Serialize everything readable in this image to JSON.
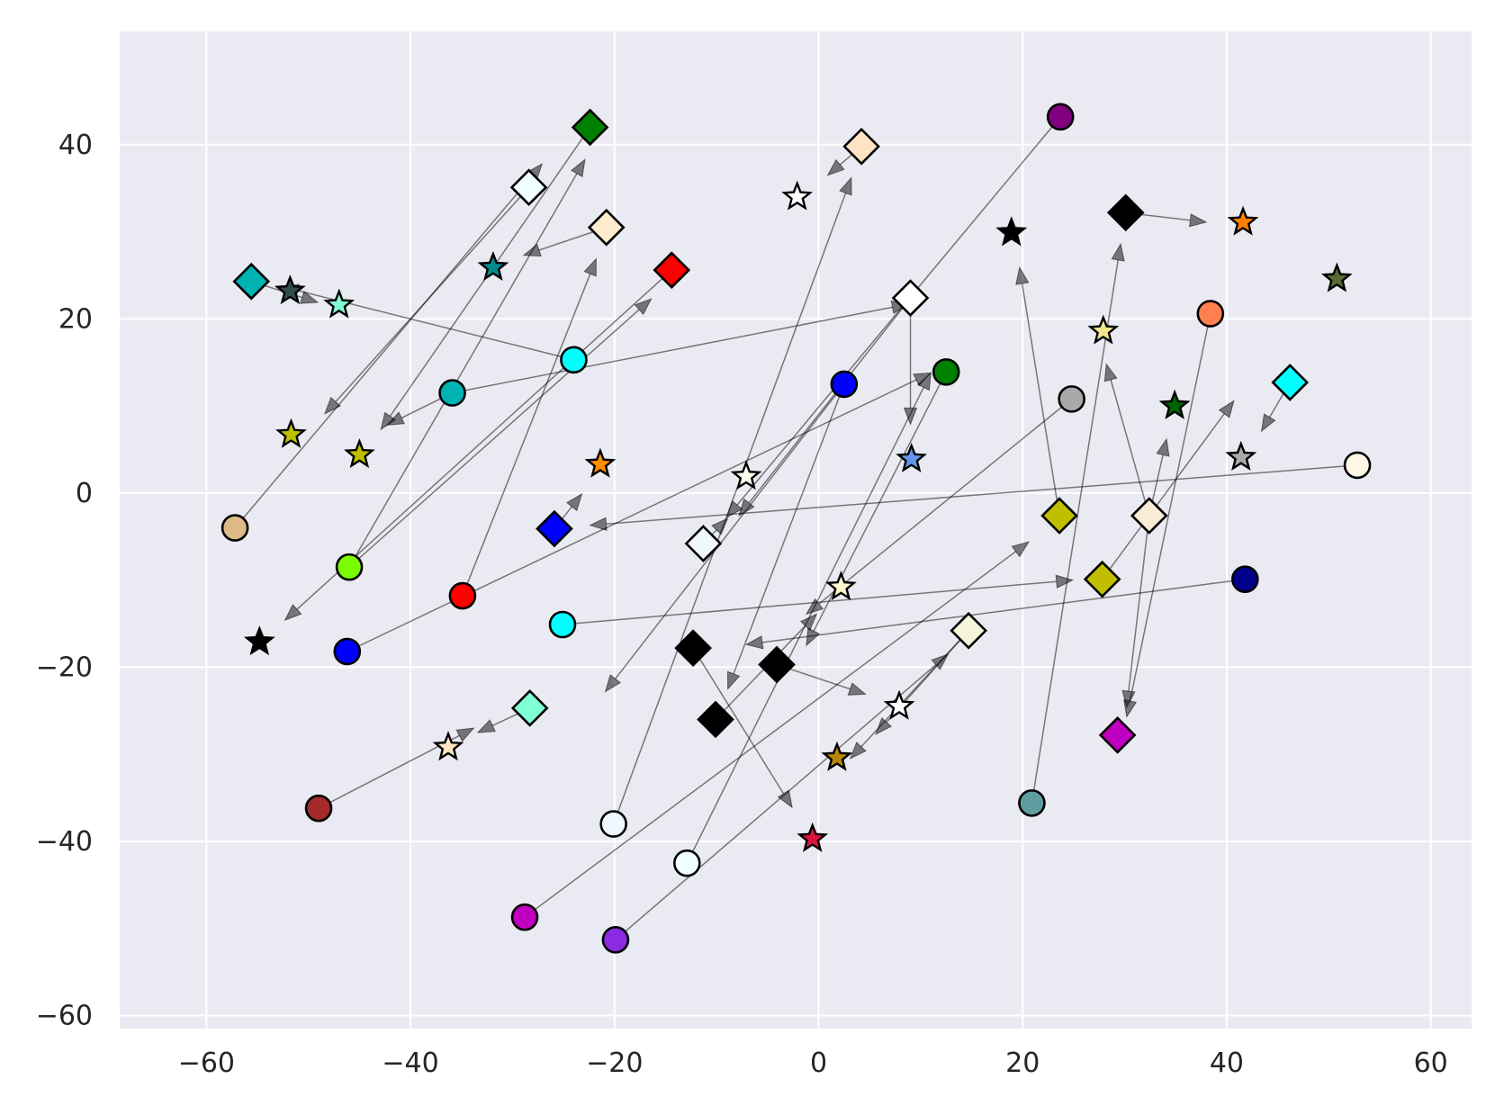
{
  "chart_data": {
    "type": "scatter",
    "title": "",
    "xlabel": "",
    "ylabel": "",
    "xlim": [
      -68.5,
      64
    ],
    "ylim": [
      -61.5,
      53
    ],
    "grid": true,
    "x_ticks": [
      -60,
      -40,
      -20,
      0,
      20,
      40,
      60
    ],
    "y_ticks": [
      -60,
      -40,
      -20,
      0,
      20,
      40
    ],
    "x_tick_labels": [
      "−60",
      "−40",
      "−20",
      "0",
      "20",
      "40",
      "60"
    ],
    "y_tick_labels": [
      "−60",
      "−40",
      "−20",
      "0",
      "20",
      "40"
    ],
    "arrows": [
      {
        "from": [
          -57.2,
          -4.0
        ],
        "to": [
          -27.1,
          37.8
        ]
      },
      {
        "from": [
          -46.0,
          -8.5
        ],
        "to": [
          -22.9,
          38.3
        ]
      },
      {
        "from": [
          -46.0,
          -8.5
        ],
        "to": [
          -16.4,
          22.3
        ]
      },
      {
        "from": [
          -46.2,
          -18.2
        ],
        "to": [
          11.0,
          13.8
        ]
      },
      {
        "from": [
          -34.9,
          -11.8
        ],
        "to": [
          -21.8,
          26.9
        ]
      },
      {
        "from": [
          -49.0,
          -36.2
        ],
        "to": [
          -33.8,
          -27.0
        ]
      },
      {
        "from": [
          -35.9,
          11.5
        ],
        "to": [
          -42.3,
          7.8
        ]
      },
      {
        "from": [
          -35.9,
          11.5
        ],
        "to": [
          8.8,
          21.7
        ]
      },
      {
        "from": [
          -24.0,
          15.3
        ],
        "to": [
          -52.6,
          23.7
        ]
      },
      {
        "from": [
          -25.1,
          -15.1
        ],
        "to": [
          24.9,
          -10.0
        ]
      },
      {
        "from": [
          -20.1,
          -38.0
        ],
        "to": [
          3.2,
          36.2
        ]
      },
      {
        "from": [
          -12.9,
          -42.5
        ],
        "to": [
          11.0,
          13.8
        ]
      },
      {
        "from": [
          -28.8,
          -48.7
        ],
        "to": [
          20.6,
          -5.6
        ]
      },
      {
        "from": [
          -19.9,
          -51.3
        ],
        "to": [
          12.7,
          -18.5
        ]
      },
      {
        "from": [
          2.5,
          12.5
        ],
        "to": [
          -20.9,
          -22.8
        ]
      },
      {
        "from": [
          2.5,
          12.5
        ],
        "to": [
          -8.9,
          -22.5
        ]
      },
      {
        "from": [
          12.5,
          13.9
        ],
        "to": [
          -1.2,
          -17.5
        ]
      },
      {
        "from": [
          23.7,
          43.2
        ],
        "to": [
          -9.0,
          -2.8
        ]
      },
      {
        "from": [
          24.8,
          10.8
        ],
        "to": [
          -1.2,
          -13.9
        ]
      },
      {
        "from": [
          20.9,
          -35.6
        ],
        "to": [
          29.6,
          28.6
        ]
      },
      {
        "from": [
          38.4,
          20.6
        ],
        "to": [
          30.2,
          -25.7
        ]
      },
      {
        "from": [
          41.8,
          -9.9
        ],
        "to": [
          -7.1,
          -17.4
        ]
      },
      {
        "from": [
          52.8,
          3.2
        ],
        "to": [
          -22.4,
          -3.7
        ]
      },
      {
        "from": [
          -55.6,
          24.3
        ],
        "to": [
          -49.1,
          21.9
        ]
      },
      {
        "from": [
          -28.4,
          35.1
        ],
        "to": [
          -48.4,
          9.1
        ]
      },
      {
        "from": [
          -22.4,
          42.0
        ],
        "to": [
          -42.9,
          7.3
        ]
      },
      {
        "from": [
          -20.8,
          30.5
        ],
        "to": [
          -28.9,
          27.3
        ]
      },
      {
        "from": [
          -14.4,
          25.6
        ],
        "to": [
          -52.3,
          -14.6
        ]
      },
      {
        "from": [
          4.2,
          39.8
        ],
        "to": [
          0.9,
          36.5
        ]
      },
      {
        "from": [
          9.0,
          22.4
        ],
        "to": [
          9.0,
          7.9
        ]
      },
      {
        "from": [
          9.0,
          22.4
        ],
        "to": [
          -7.8,
          -2.6
        ]
      },
      {
        "from": [
          -25.9,
          -4.1
        ],
        "to": [
          -23.2,
          -0.1
        ]
      },
      {
        "from": [
          -11.3,
          -5.8
        ],
        "to": [
          -8.9,
          -2.9
        ]
      },
      {
        "from": [
          -12.3,
          -17.8
        ],
        "to": [
          -2.6,
          -36.1
        ]
      },
      {
        "from": [
          -10.1,
          -26.0
        ],
        "to": [
          -0.2,
          -13.9
        ]
      },
      {
        "from": [
          -4.1,
          -19.7
        ],
        "to": [
          4.6,
          -23.1
        ]
      },
      {
        "from": [
          -28.3,
          -24.7
        ],
        "to": [
          -33.4,
          -27.5
        ]
      },
      {
        "from": [
          14.7,
          -15.8
        ],
        "to": [
          3.1,
          -30.5
        ]
      },
      {
        "from": [
          14.7,
          -15.8
        ],
        "to": [
          5.6,
          -27.7
        ]
      },
      {
        "from": [
          23.6,
          -2.6
        ],
        "to": [
          19.7,
          25.9
        ]
      },
      {
        "from": [
          27.8,
          -9.9
        ],
        "to": [
          40.7,
          10.6
        ]
      },
      {
        "from": [
          30.1,
          32.2
        ],
        "to": [
          38.0,
          31.1
        ]
      },
      {
        "from": [
          32.4,
          -2.6
        ],
        "to": [
          28.2,
          14.8
        ]
      },
      {
        "from": [
          32.4,
          -2.6
        ],
        "to": [
          34.1,
          6.2
        ]
      },
      {
        "from": [
          32.4,
          -2.6
        ],
        "to": [
          30.2,
          -24.6
        ]
      },
      {
        "from": [
          46.2,
          12.7
        ],
        "to": [
          43.4,
          7.1
        ]
      }
    ],
    "points": [
      {
        "marker": "circle",
        "x": -57.2,
        "y": -4.0,
        "color": "#deb887"
      },
      {
        "marker": "circle",
        "x": -46.0,
        "y": -8.5,
        "color": "#7cfc00"
      },
      {
        "marker": "circle",
        "x": -46.2,
        "y": -18.2,
        "color": "#0000ff"
      },
      {
        "marker": "circle",
        "x": -34.9,
        "y": -11.8,
        "color": "#ff0000"
      },
      {
        "marker": "circle",
        "x": -49.0,
        "y": -36.2,
        "color": "#a52a2a"
      },
      {
        "marker": "circle",
        "x": -35.9,
        "y": 11.5,
        "color": "#00b3b3"
      },
      {
        "marker": "circle",
        "x": -24.0,
        "y": 15.3,
        "color": "#00ffff"
      },
      {
        "marker": "circle",
        "x": -25.1,
        "y": -15.1,
        "color": "#00ffff"
      },
      {
        "marker": "circle",
        "x": -20.1,
        "y": -38.0,
        "color": "#f0f8ff"
      },
      {
        "marker": "circle",
        "x": -12.9,
        "y": -42.5,
        "color": "#f0ffff"
      },
      {
        "marker": "circle",
        "x": -28.8,
        "y": -48.7,
        "color": "#c000c0"
      },
      {
        "marker": "circle",
        "x": -19.9,
        "y": -51.3,
        "color": "#8a2be2"
      },
      {
        "marker": "circle",
        "x": 2.5,
        "y": 12.5,
        "color": "#0000ff"
      },
      {
        "marker": "circle",
        "x": 12.5,
        "y": 13.9,
        "color": "#008000"
      },
      {
        "marker": "circle",
        "x": 23.7,
        "y": 43.2,
        "color": "#800080"
      },
      {
        "marker": "circle",
        "x": 24.8,
        "y": 10.8,
        "color": "#a9a9a9"
      },
      {
        "marker": "circle",
        "x": 20.9,
        "y": -35.6,
        "color": "#5f9ea0"
      },
      {
        "marker": "circle",
        "x": 38.4,
        "y": 20.6,
        "color": "#ff7f50"
      },
      {
        "marker": "circle",
        "x": 41.8,
        "y": -9.9,
        "color": "#00008b"
      },
      {
        "marker": "circle",
        "x": 52.8,
        "y": 3.2,
        "color": "#fff8e7"
      },
      {
        "marker": "diamond",
        "x": -55.6,
        "y": 24.3,
        "color": "#00b3b3"
      },
      {
        "marker": "diamond",
        "x": -28.4,
        "y": 35.1,
        "color": "#f0ffff"
      },
      {
        "marker": "diamond",
        "x": -22.4,
        "y": 42.0,
        "color": "#008000"
      },
      {
        "marker": "diamond",
        "x": -20.8,
        "y": 30.5,
        "color": "#ffebcd"
      },
      {
        "marker": "diamond",
        "x": -14.4,
        "y": 25.6,
        "color": "#ff0000"
      },
      {
        "marker": "diamond",
        "x": 4.2,
        "y": 39.8,
        "color": "#ffe4c4"
      },
      {
        "marker": "diamond",
        "x": 9.0,
        "y": 22.4,
        "color": "#ffffff"
      },
      {
        "marker": "diamond",
        "x": -25.9,
        "y": -4.1,
        "color": "#0000ff"
      },
      {
        "marker": "diamond",
        "x": -11.3,
        "y": -5.8,
        "color": "#f0f8ff"
      },
      {
        "marker": "diamond",
        "x": -12.3,
        "y": -17.8,
        "color": "#000000"
      },
      {
        "marker": "diamond",
        "x": -10.1,
        "y": -26.0,
        "color": "#000000"
      },
      {
        "marker": "diamond",
        "x": -4.1,
        "y": -19.7,
        "color": "#000000"
      },
      {
        "marker": "diamond",
        "x": -28.3,
        "y": -24.7,
        "color": "#7fffd4"
      },
      {
        "marker": "diamond",
        "x": 14.7,
        "y": -15.8,
        "color": "#f5f5dc"
      },
      {
        "marker": "diamond",
        "x": 23.6,
        "y": -2.6,
        "color": "#bfbf00"
      },
      {
        "marker": "diamond",
        "x": 27.8,
        "y": -9.9,
        "color": "#bfbf00"
      },
      {
        "marker": "diamond",
        "x": 30.1,
        "y": 32.2,
        "color": "#000000"
      },
      {
        "marker": "diamond",
        "x": 32.4,
        "y": -2.6,
        "color": "#faebd7"
      },
      {
        "marker": "diamond",
        "x": 29.3,
        "y": -27.8,
        "color": "#c000c0"
      },
      {
        "marker": "diamond",
        "x": 46.2,
        "y": 12.7,
        "color": "#00ffff"
      },
      {
        "marker": "star",
        "x": -51.8,
        "y": 23.2,
        "color": "#2f4f4f"
      },
      {
        "marker": "star",
        "x": -47.0,
        "y": 21.6,
        "color": "#7fffd4"
      },
      {
        "marker": "star",
        "x": -51.7,
        "y": 6.7,
        "color": "#bfbf00"
      },
      {
        "marker": "star",
        "x": -45.0,
        "y": 4.4,
        "color": "#bfbf00"
      },
      {
        "marker": "star",
        "x": -31.9,
        "y": 25.9,
        "color": "#008b8b"
      },
      {
        "marker": "star",
        "x": -54.8,
        "y": -17.1,
        "color": "#000000"
      },
      {
        "marker": "star",
        "x": -36.3,
        "y": -29.2,
        "color": "#ffe4c4"
      },
      {
        "marker": "star",
        "x": -21.4,
        "y": 3.3,
        "color": "#ff8c00"
      },
      {
        "marker": "star",
        "x": -2.1,
        "y": 34.0,
        "color": "#ffffff"
      },
      {
        "marker": "star",
        "x": -7.1,
        "y": 1.9,
        "color": "#fffff0"
      },
      {
        "marker": "star",
        "x": 2.2,
        "y": -10.8,
        "color": "#fffacd"
      },
      {
        "marker": "star",
        "x": 7.9,
        "y": -24.5,
        "color": "#ffffff"
      },
      {
        "marker": "star",
        "x": 1.8,
        "y": -30.4,
        "color": "#b8860b"
      },
      {
        "marker": "star",
        "x": -0.6,
        "y": -39.7,
        "color": "#dc143c"
      },
      {
        "marker": "star",
        "x": 9.1,
        "y": 3.9,
        "color": "#6495ed"
      },
      {
        "marker": "star",
        "x": 18.9,
        "y": 29.9,
        "color": "#000000"
      },
      {
        "marker": "star",
        "x": 27.9,
        "y": 18.6,
        "color": "#f0e68c"
      },
      {
        "marker": "star",
        "x": 34.9,
        "y": 10.0,
        "color": "#006400"
      },
      {
        "marker": "star",
        "x": 41.6,
        "y": 31.1,
        "color": "#ff7f00"
      },
      {
        "marker": "star",
        "x": 50.8,
        "y": 24.6,
        "color": "#556b2f"
      },
      {
        "marker": "star",
        "x": 41.4,
        "y": 4.1,
        "color": "#a9a9a9"
      }
    ]
  }
}
